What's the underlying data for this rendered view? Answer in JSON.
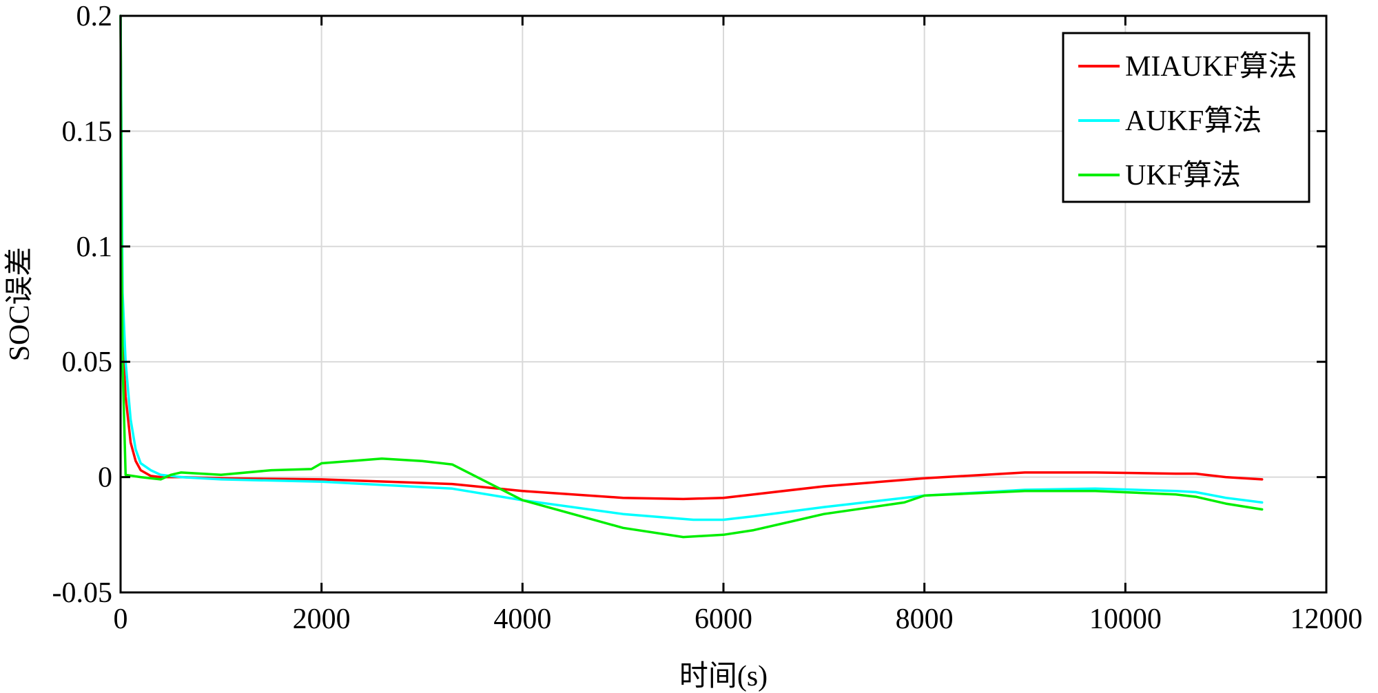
{
  "chart_data": {
    "type": "line",
    "title": "",
    "xlabel": "时间(s)",
    "ylabel": "SOC误差",
    "xlim": [
      0,
      12000
    ],
    "ylim": [
      -0.05,
      0.2
    ],
    "xticks": [
      0,
      2000,
      4000,
      6000,
      8000,
      10000,
      12000
    ],
    "xtick_labels": [
      "0",
      "2000",
      "4000",
      "6000",
      "8000",
      "10000",
      "12000"
    ],
    "yticks": [
      -0.05,
      0,
      0.05,
      0.1,
      0.15,
      0.2
    ],
    "ytick_labels": [
      "-0.05",
      "0",
      "0.05",
      "0.1",
      "0.15",
      "0.2"
    ],
    "grid": true,
    "legend_position": "top-right",
    "series": [
      {
        "name": "MIAUKF算法",
        "color": "#ff0000",
        "x": [
          0,
          20,
          50,
          100,
          150,
          200,
          300,
          400,
          600,
          1000,
          2000,
          3000,
          3300,
          4000,
          5000,
          5600,
          6000,
          6300,
          7000,
          8000,
          9000,
          9700,
          10500,
          10700,
          11000,
          11360
        ],
        "y": [
          0.2,
          0.06,
          0.035,
          0.015,
          0.007,
          0.003,
          0.0005,
          0,
          0,
          -0.0005,
          -0.001,
          -0.0025,
          -0.003,
          -0.006,
          -0.009,
          -0.0095,
          -0.009,
          -0.0075,
          -0.004,
          -0.0005,
          0.002,
          0.002,
          0.0015,
          0.0015,
          0,
          -0.001
        ]
      },
      {
        "name": "AUKF算法",
        "color": "#00ffff",
        "x": [
          0,
          20,
          50,
          100,
          150,
          200,
          300,
          400,
          600,
          1000,
          2000,
          3300,
          4000,
          5000,
          5700,
          6000,
          6300,
          7000,
          8000,
          9000,
          9700,
          10500,
          10700,
          11000,
          11360
        ],
        "y": [
          0.2,
          0.08,
          0.05,
          0.025,
          0.012,
          0.006,
          0.003,
          0.001,
          0,
          -0.001,
          -0.002,
          -0.005,
          -0.01,
          -0.016,
          -0.0185,
          -0.0185,
          -0.017,
          -0.013,
          -0.008,
          -0.0055,
          -0.005,
          -0.006,
          -0.0065,
          -0.009,
          -0.011
        ]
      },
      {
        "name": "UKF算法",
        "color": "#00ee00",
        "x": [
          0,
          10,
          20,
          50,
          200,
          400,
          500,
          600,
          1000,
          1500,
          1900,
          2000,
          2600,
          3000,
          3300,
          4000,
          4500,
          5000,
          5600,
          6000,
          6300,
          7000,
          7800,
          8000,
          9000,
          9700,
          10500,
          10700,
          11000,
          11360
        ],
        "y": [
          0.2,
          0.1,
          0.05,
          0.001,
          0,
          -0.001,
          0.001,
          0.002,
          0.001,
          0.003,
          0.0035,
          0.006,
          0.008,
          0.007,
          0.0055,
          -0.01,
          -0.016,
          -0.022,
          -0.026,
          -0.025,
          -0.023,
          -0.016,
          -0.011,
          -0.008,
          -0.006,
          -0.006,
          -0.0075,
          -0.0085,
          -0.0115,
          -0.014
        ]
      }
    ]
  }
}
